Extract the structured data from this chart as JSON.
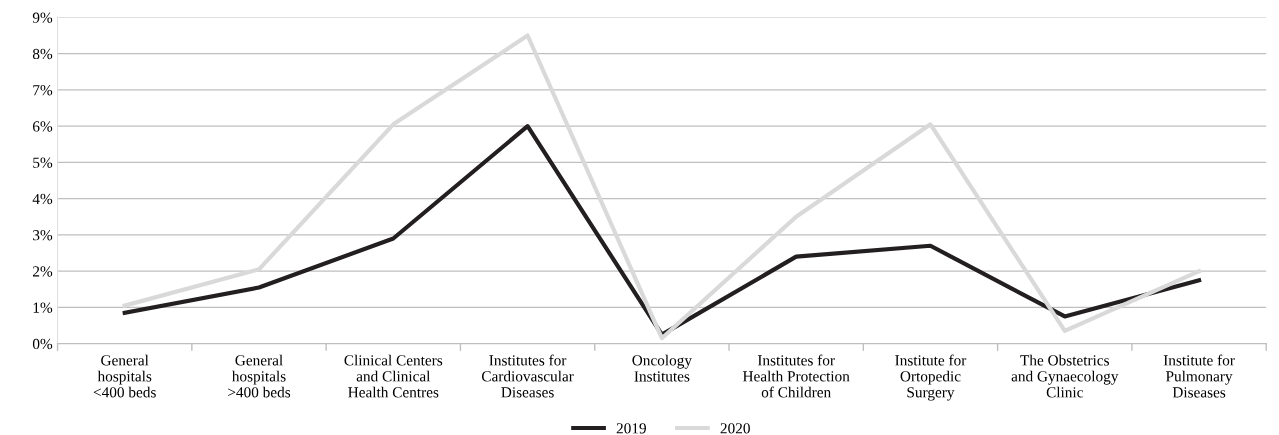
{
  "chart_data": {
    "type": "line",
    "categories": [
      "General\nhospitals\n<400 beds",
      "General\nhospitals\n>400 beds",
      "Clinical Centers\nand Clinical\nHealth Centres",
      "Institutes for\nCardiovascular\nDiseases",
      "Oncology\nInstitutes",
      "Institutes for\nHealth Protection\nof Children",
      "Institute for\nOrtopedic\nSurgery",
      "The Obstetrics\nand Gynaecology\nClinic",
      "Institute for\nPulmonary\nDiseases"
    ],
    "series": [
      {
        "name": "2019",
        "color": "#231f20",
        "values": [
          0.85,
          1.55,
          2.9,
          6.0,
          0.25,
          2.4,
          2.7,
          0.75,
          1.75
        ]
      },
      {
        "name": "2020",
        "color": "#d9d9d9",
        "values": [
          1.05,
          2.05,
          6.05,
          8.5,
          0.15,
          3.5,
          6.05,
          0.35,
          2.0
        ]
      }
    ],
    "ylim": [
      0,
      9
    ],
    "yticks": [
      {
        "value": 0,
        "label": "0%"
      },
      {
        "value": 1,
        "label": "1%"
      },
      {
        "value": 2,
        "label": "2%"
      },
      {
        "value": 3,
        "label": "3%"
      },
      {
        "value": 4,
        "label": "4%"
      },
      {
        "value": 5,
        "label": "5%"
      },
      {
        "value": 6,
        "label": "6%"
      },
      {
        "value": 7,
        "label": "7%"
      },
      {
        "value": 8,
        "label": "8%"
      },
      {
        "value": 9,
        "label": "9%"
      }
    ],
    "grid": "y",
    "legend": "bottom",
    "marker": "none",
    "line_style": "solid"
  }
}
